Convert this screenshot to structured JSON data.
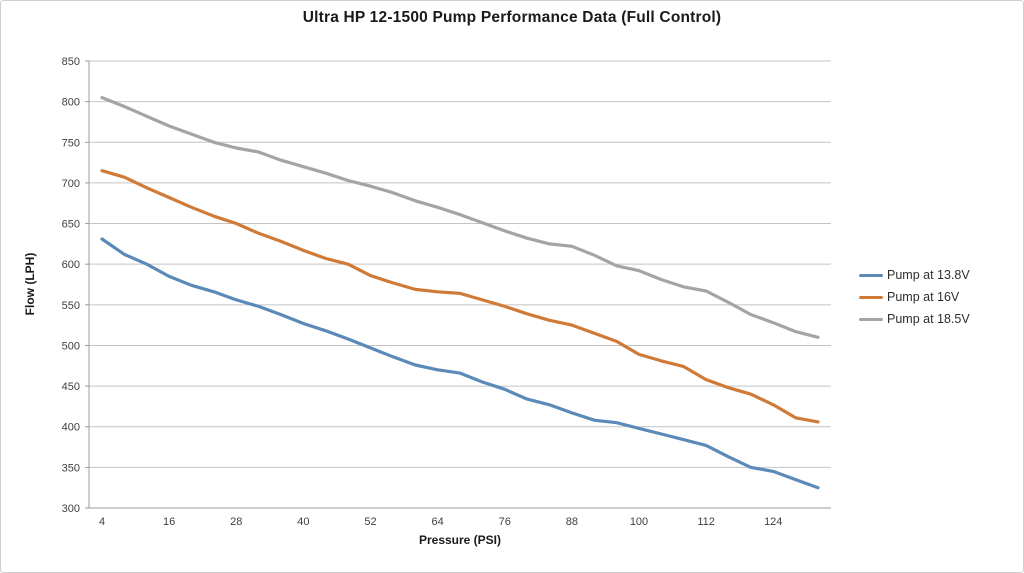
{
  "chart": {
    "title": "Ultra HP 12-1500 Pump Performance Data (Full Control)",
    "xlabel": "Pressure (PSI)",
    "ylabel": "Flow (LPH)"
  },
  "colors": {
    "grid": "#c4c4c4",
    "axis": "#9b9b9b",
    "tick_text": "#3f3f3f",
    "series_blue": "#5b8ab8",
    "series_orange": "#d07a38",
    "series_gray": "#a4a4a4"
  },
  "chart_data": {
    "type": "line",
    "title": "Ultra HP 12-1500 Pump Performance Data (Full Control)",
    "xlabel": "Pressure (PSI)",
    "ylabel": "Flow (LPH)",
    "grid": true,
    "legend_position": "right",
    "xlim": [
      4,
      132
    ],
    "ylim": [
      300,
      850
    ],
    "ytick_step": 50,
    "yticks": [
      300,
      350,
      400,
      450,
      500,
      550,
      600,
      650,
      700,
      750,
      800,
      850
    ],
    "xticks": [
      4,
      16,
      28,
      40,
      52,
      64,
      76,
      88,
      100,
      112,
      124
    ],
    "x": [
      4,
      8,
      12,
      16,
      20,
      24,
      28,
      32,
      36,
      40,
      44,
      48,
      52,
      56,
      60,
      64,
      68,
      72,
      76,
      80,
      84,
      88,
      92,
      96,
      100,
      104,
      108,
      112,
      116,
      120,
      124,
      128,
      132
    ],
    "series": [
      {
        "name": "Pump at 13.8V",
        "color": "#5b8ab8",
        "values": [
          631,
          612,
          600,
          585,
          574,
          566,
          556,
          548,
          538,
          527,
          518,
          508,
          497,
          486,
          476,
          470,
          466,
          455,
          446,
          434,
          427,
          417,
          408,
          405,
          398,
          391,
          384,
          377,
          363,
          350,
          345,
          335,
          325
        ]
      },
      {
        "name": "Pump at 16V",
        "color": "#d07a38",
        "values": [
          715,
          707,
          694,
          682,
          670,
          659,
          650,
          638,
          628,
          617,
          607,
          600,
          586,
          577,
          569,
          566,
          564,
          556,
          548,
          539,
          531,
          525,
          515,
          505,
          489,
          481,
          474,
          458,
          448,
          440,
          427,
          411,
          406
        ]
      },
      {
        "name": "Pump at 18.5V",
        "color": "#a4a4a4",
        "values": [
          805,
          794,
          782,
          770,
          760,
          750,
          743,
          738,
          728,
          720,
          712,
          703,
          696,
          688,
          678,
          670,
          661,
          651,
          641,
          632,
          625,
          622,
          611,
          598,
          592,
          581,
          572,
          567,
          553,
          538,
          528,
          517,
          510
        ]
      }
    ]
  }
}
